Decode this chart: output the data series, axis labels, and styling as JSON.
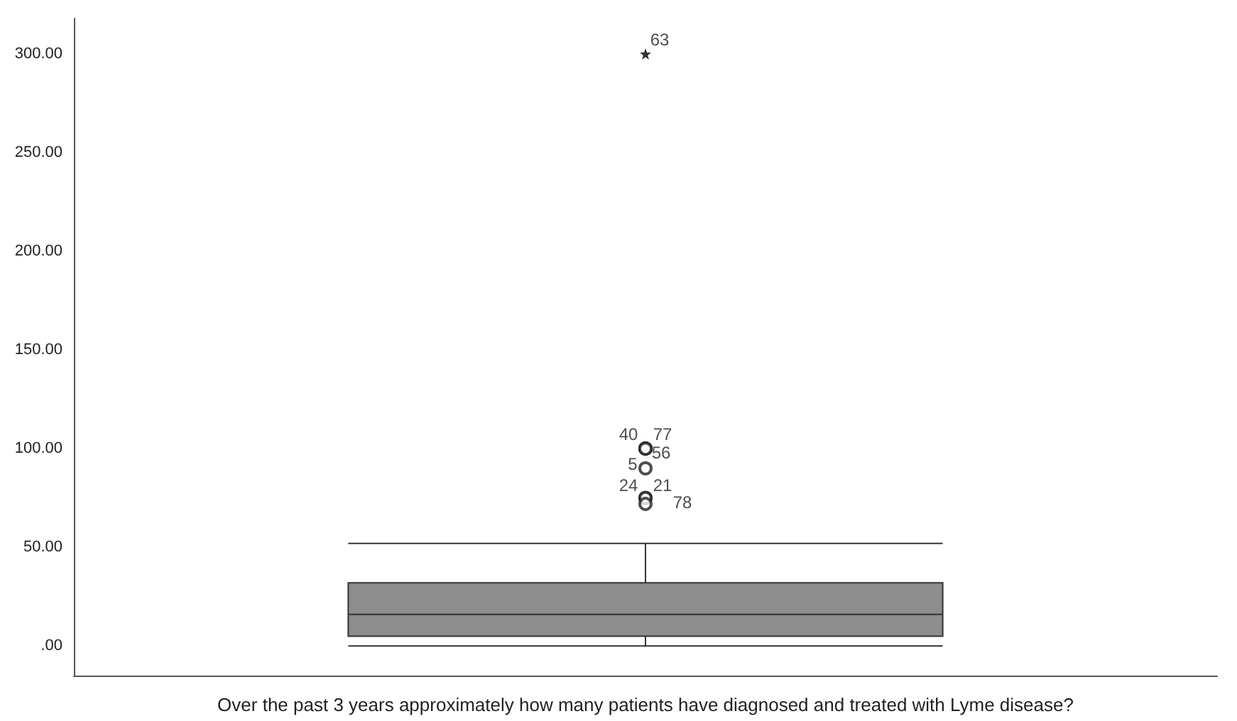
{
  "chart_data": {
    "type": "box",
    "xlabel": "Over the past 3 years approximately how many patients have diagnosed and treated with Lyme disease?",
    "categories": [
      null
    ],
    "series": [
      {
        "color": "#8e8e8e",
        "boxes": [
          {
            "low": 0,
            "q1": 5,
            "median": 16,
            "q3": 32,
            "high": 52,
            "outliers": [
              100,
              100,
              100,
              90,
              75,
              75,
              72
            ]
          }
        ]
      },
      {
        "type": "scatter",
        "marker": "star",
        "color": "#000000",
        "values": [
          300
        ]
      }
    ],
    "annotations": [
      "63",
      "40",
      "77",
      "56",
      "5",
      "24",
      "21",
      "78"
    ],
    "ylim": [
      -15,
      318
    ],
    "yticks": [
      {
        "value": 0,
        "label": ".00"
      },
      {
        "value": 50,
        "label": "50.00"
      },
      {
        "value": 100,
        "label": "100.00"
      },
      {
        "value": 150,
        "label": "150.00"
      },
      {
        "value": 200,
        "label": "200.00"
      },
      {
        "value": 250,
        "label": "250.00"
      },
      {
        "value": 300,
        "label": "300.00"
      }
    ],
    "grid": false
  }
}
